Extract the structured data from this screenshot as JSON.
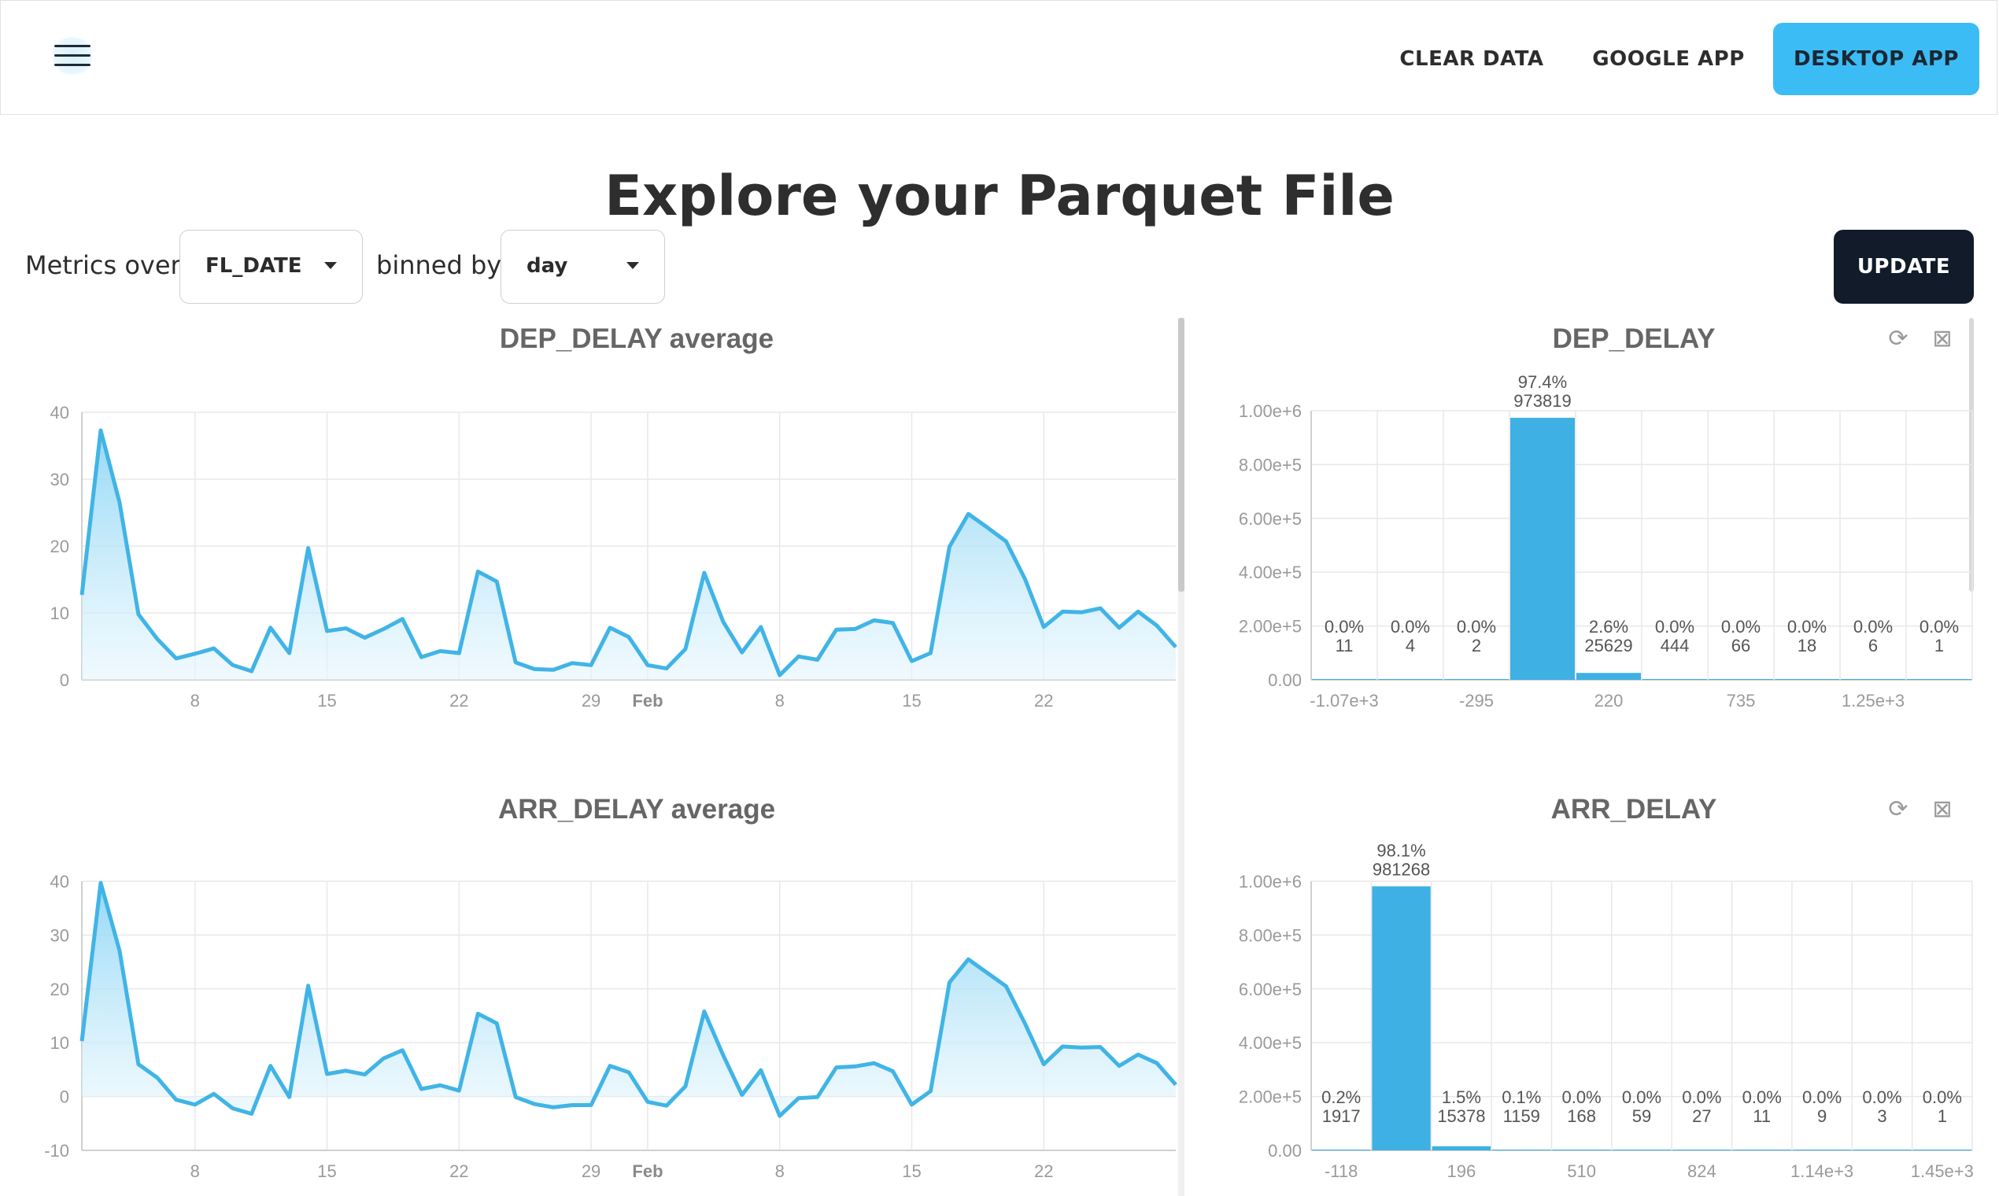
{
  "navbar": {
    "clear_label": "CLEAR DATA",
    "google_label": "GOOGLE APP",
    "desktop_label": "DESKTOP APP",
    "menu_icon": "hamburger-icon"
  },
  "page": {
    "title": "Explore your Parquet File"
  },
  "controls": {
    "metrics_label": "Metrics over",
    "field_value": "FL_DATE",
    "binned_label": "binned by",
    "bin_value": "day",
    "update_label": "UPDATE"
  },
  "colors": {
    "accent": "#3cbcf4",
    "line": "#41b4e6",
    "bar": "#3eb0e3",
    "dark": "#121b29"
  },
  "chart_data": [
    {
      "id": "dep_avg",
      "type": "area",
      "title": "DEP_DELAY average",
      "ylim": [
        0,
        40
      ],
      "yticks": [
        0,
        10,
        20,
        30,
        40
      ],
      "xlim": [
        0,
        58
      ],
      "xticks": [
        {
          "x": 6,
          "label": "8",
          "bold": false
        },
        {
          "x": 13,
          "label": "15",
          "bold": false
        },
        {
          "x": 20,
          "label": "22",
          "bold": false
        },
        {
          "x": 27,
          "label": "29",
          "bold": false
        },
        {
          "x": 30,
          "label": "Feb",
          "bold": true
        },
        {
          "x": 37,
          "label": "8",
          "bold": false
        },
        {
          "x": 44,
          "label": "15",
          "bold": false
        },
        {
          "x": 51,
          "label": "22",
          "bold": false
        }
      ],
      "values": [
        12.7,
        37.3,
        26.5,
        9.8,
        6.1,
        3.2,
        3.9,
        4.7,
        2.2,
        1.3,
        7.8,
        4.0,
        19.7,
        7.3,
        7.7,
        6.3,
        7.6,
        9.1,
        3.4,
        4.3,
        4.0,
        16.2,
        14.7,
        2.6,
        1.6,
        1.5,
        2.5,
        2.2,
        7.8,
        6.4,
        2.2,
        1.7,
        4.6,
        16.0,
        8.7,
        4.1,
        7.9,
        0.7,
        3.5,
        3.0,
        7.5,
        7.6,
        8.9,
        8.5,
        2.8,
        4.0,
        19.9,
        24.8,
        22.8,
        20.7,
        15.1,
        7.9,
        10.2,
        10.1,
        10.7,
        7.8,
        10.2,
        8.1,
        4.9
      ]
    },
    {
      "id": "arr_avg",
      "type": "area",
      "title": "ARR_DELAY average",
      "ylim": [
        -10,
        40
      ],
      "yticks": [
        -10,
        0,
        10,
        20,
        30,
        40
      ],
      "xlim": [
        0,
        58
      ],
      "xticks": [
        {
          "x": 6,
          "label": "8",
          "bold": false
        },
        {
          "x": 13,
          "label": "15",
          "bold": false
        },
        {
          "x": 20,
          "label": "22",
          "bold": false
        },
        {
          "x": 27,
          "label": "29",
          "bold": false
        },
        {
          "x": 30,
          "label": "Feb",
          "bold": true
        },
        {
          "x": 37,
          "label": "8",
          "bold": false
        },
        {
          "x": 44,
          "label": "15",
          "bold": false
        },
        {
          "x": 51,
          "label": "22",
          "bold": false
        }
      ],
      "values": [
        10.3,
        39.7,
        27.1,
        6.0,
        3.5,
        -0.6,
        -1.5,
        0.5,
        -2.2,
        -3.2,
        5.7,
        -0.1,
        20.6,
        4.2,
        4.8,
        4.1,
        7.1,
        8.6,
        1.4,
        2.1,
        1.1,
        15.4,
        13.6,
        -0.1,
        -1.4,
        -2.0,
        -1.6,
        -1.6,
        5.7,
        4.5,
        -1.0,
        -1.7,
        1.9,
        15.8,
        7.7,
        0.3,
        4.9,
        -3.6,
        -0.3,
        -0.1,
        5.4,
        5.6,
        6.2,
        4.7,
        -1.5,
        1.0,
        21.2,
        25.5,
        23.0,
        20.5,
        13.6,
        6.0,
        9.3,
        9.1,
        9.2,
        5.7,
        7.8,
        6.2,
        2.2
      ]
    },
    {
      "id": "dep_hist",
      "type": "bar",
      "title": "DEP_DELAY",
      "ylim": [
        0,
        1000000
      ],
      "yticks": [
        {
          "v": 0,
          "label": "0.00"
        },
        {
          "v": 200000,
          "label": "2.00e+5"
        },
        {
          "v": 400000,
          "label": "4.00e+5"
        },
        {
          "v": 600000,
          "label": "6.00e+5"
        },
        {
          "v": 800000,
          "label": "8.00e+5"
        },
        {
          "v": 1000000,
          "label": "1.00e+6"
        }
      ],
      "xticks": [
        {
          "at": 0.5,
          "label": "-1.07e+3"
        },
        {
          "at": 2.5,
          "label": "-295"
        },
        {
          "at": 4.5,
          "label": "220"
        },
        {
          "at": 6.5,
          "label": "735"
        },
        {
          "at": 8.5,
          "label": "1.25e+3"
        }
      ],
      "bins": [
        {
          "pct": "0.0%",
          "count": 11
        },
        {
          "pct": "0.0%",
          "count": 4
        },
        {
          "pct": "0.0%",
          "count": 2
        },
        {
          "pct": "97.4%",
          "count": 973819
        },
        {
          "pct": "2.6%",
          "count": 25629
        },
        {
          "pct": "0.0%",
          "count": 444
        },
        {
          "pct": "0.0%",
          "count": 66
        },
        {
          "pct": "0.0%",
          "count": 18
        },
        {
          "pct": "0.0%",
          "count": 6
        },
        {
          "pct": "0.0%",
          "count": 1
        }
      ]
    },
    {
      "id": "arr_hist",
      "type": "bar",
      "title": "ARR_DELAY",
      "ylim": [
        0,
        1000000
      ],
      "yticks": [
        {
          "v": 0,
          "label": "0.00"
        },
        {
          "v": 200000,
          "label": "2.00e+5"
        },
        {
          "v": 400000,
          "label": "4.00e+5"
        },
        {
          "v": 600000,
          "label": "6.00e+5"
        },
        {
          "v": 800000,
          "label": "8.00e+5"
        },
        {
          "v": 1000000,
          "label": "1.00e+6"
        }
      ],
      "xticks": [
        {
          "at": 0.5,
          "label": "-118"
        },
        {
          "at": 2.5,
          "label": "196"
        },
        {
          "at": 4.5,
          "label": "510"
        },
        {
          "at": 6.5,
          "label": "824"
        },
        {
          "at": 8.5,
          "label": "1.14e+3"
        },
        {
          "at": 10.5,
          "label": "1.45e+3"
        }
      ],
      "bins": [
        {
          "pct": "0.2%",
          "count": 1917
        },
        {
          "pct": "98.1%",
          "count": 981268
        },
        {
          "pct": "1.5%",
          "count": 15378
        },
        {
          "pct": "0.1%",
          "count": 1159
        },
        {
          "pct": "0.0%",
          "count": 168
        },
        {
          "pct": "0.0%",
          "count": 59
        },
        {
          "pct": "0.0%",
          "count": 27
        },
        {
          "pct": "0.0%",
          "count": 11
        },
        {
          "pct": "0.0%",
          "count": 9
        },
        {
          "pct": "0.0%",
          "count": 3
        },
        {
          "pct": "0.0%",
          "count": 1
        }
      ]
    }
  ]
}
